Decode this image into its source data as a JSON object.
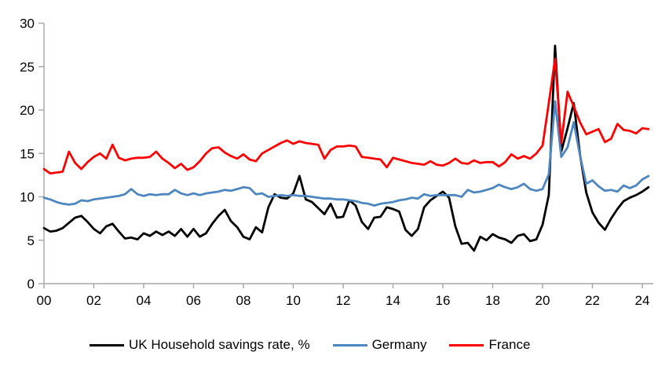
{
  "page": {
    "background": "#ffffff"
  },
  "chart_data": {
    "type": "line",
    "title": "",
    "grid": false,
    "legend_position": "bottom",
    "axis_color": "#a6a6a6",
    "label_color": "#000000",
    "x_axis": {
      "tick_labels": [
        "00",
        "02",
        "04",
        "06",
        "08",
        "10",
        "12",
        "14",
        "16",
        "18",
        "20",
        "22",
        "24"
      ],
      "range_years": [
        2000,
        2024.25
      ],
      "frequency": "quarterly"
    },
    "y_axis": {
      "ticks": [
        0,
        5,
        10,
        15,
        20,
        25,
        30
      ],
      "range": [
        0,
        30
      ]
    },
    "x_years": [
      2000.0,
      2000.25,
      2000.5,
      2000.75,
      2001.0,
      2001.25,
      2001.5,
      2001.75,
      2002.0,
      2002.25,
      2002.5,
      2002.75,
      2003.0,
      2003.25,
      2003.5,
      2003.75,
      2004.0,
      2004.25,
      2004.5,
      2004.75,
      2005.0,
      2005.25,
      2005.5,
      2005.75,
      2006.0,
      2006.25,
      2006.5,
      2006.75,
      2007.0,
      2007.25,
      2007.5,
      2007.75,
      2008.0,
      2008.25,
      2008.5,
      2008.75,
      2009.0,
      2009.25,
      2009.5,
      2009.75,
      2010.0,
      2010.25,
      2010.5,
      2010.75,
      2011.0,
      2011.25,
      2011.5,
      2011.75,
      2012.0,
      2012.25,
      2012.5,
      2012.75,
      2013.0,
      2013.25,
      2013.5,
      2013.75,
      2014.0,
      2014.25,
      2014.5,
      2014.75,
      2015.0,
      2015.25,
      2015.5,
      2015.75,
      2016.0,
      2016.25,
      2016.5,
      2016.75,
      2017.0,
      2017.25,
      2017.5,
      2017.75,
      2018.0,
      2018.25,
      2018.5,
      2018.75,
      2019.0,
      2019.25,
      2019.5,
      2019.75,
      2020.0,
      2020.25,
      2020.5,
      2020.75,
      2021.0,
      2021.25,
      2021.5,
      2021.75,
      2022.0,
      2022.25,
      2022.5,
      2022.75,
      2023.0,
      2023.25,
      2023.5,
      2023.75,
      2024.0,
      2024.25
    ],
    "series": [
      {
        "id": "uk",
        "name": "UK Household savings rate, %",
        "color": "#000000",
        "values": [
          6.4,
          6.0,
          6.1,
          6.4,
          7.0,
          7.6,
          7.8,
          7.1,
          6.3,
          5.8,
          6.6,
          6.9,
          6.0,
          5.2,
          5.3,
          5.1,
          5.8,
          5.5,
          6.0,
          5.6,
          6.0,
          5.5,
          6.3,
          5.4,
          6.3,
          5.4,
          5.8,
          6.9,
          7.8,
          8.5,
          7.2,
          6.5,
          5.4,
          5.1,
          6.5,
          5.9,
          8.8,
          10.3,
          9.9,
          9.8,
          10.4,
          12.4,
          9.7,
          9.4,
          8.7,
          8.0,
          9.2,
          7.6,
          7.7,
          9.6,
          9.0,
          7.1,
          6.3,
          7.6,
          7.7,
          8.8,
          8.6,
          8.3,
          6.2,
          5.5,
          6.3,
          8.8,
          9.6,
          10.1,
          10.6,
          9.9,
          6.6,
          4.6,
          4.7,
          3.8,
          5.4,
          5.0,
          5.7,
          5.3,
          5.1,
          4.7,
          5.5,
          5.7,
          4.9,
          5.1,
          6.8,
          10.2,
          27.4,
          15.2,
          17.9,
          20.8,
          14.9,
          10.5,
          8.2,
          7.0,
          6.2,
          7.5,
          8.6,
          9.5,
          9.9,
          10.2,
          10.6,
          11.1
        ]
      },
      {
        "id": "germany",
        "name": "Germany",
        "color": "#4e86c0",
        "values": [
          9.9,
          9.7,
          9.4,
          9.2,
          9.1,
          9.2,
          9.6,
          9.5,
          9.7,
          9.8,
          9.9,
          10.0,
          10.1,
          10.3,
          10.9,
          10.3,
          10.1,
          10.3,
          10.2,
          10.3,
          10.3,
          10.8,
          10.4,
          10.2,
          10.4,
          10.2,
          10.4,
          10.5,
          10.6,
          10.8,
          10.7,
          10.9,
          11.1,
          11.0,
          10.3,
          10.4,
          10.0,
          10.1,
          10.2,
          10.1,
          10.2,
          10.1,
          10.1,
          10.0,
          9.9,
          9.8,
          9.8,
          9.7,
          9.7,
          9.6,
          9.5,
          9.3,
          9.2,
          9.0,
          9.2,
          9.3,
          9.4,
          9.6,
          9.7,
          9.9,
          9.8,
          10.3,
          10.1,
          10.2,
          10.2,
          10.2,
          10.2,
          10.0,
          10.8,
          10.5,
          10.6,
          10.8,
          11.0,
          11.4,
          11.1,
          10.9,
          11.1,
          11.5,
          10.9,
          10.7,
          10.9,
          12.6,
          21.0,
          14.6,
          15.7,
          18.6,
          14.8,
          11.5,
          11.9,
          11.2,
          10.7,
          10.8,
          10.6,
          11.3,
          11.0,
          11.3,
          12.0,
          12.4
        ]
      },
      {
        "id": "france",
        "name": "France",
        "color": "#ff0000",
        "values": [
          13.2,
          12.7,
          12.8,
          12.9,
          15.2,
          13.9,
          13.2,
          14.0,
          14.6,
          15.0,
          14.4,
          16.0,
          14.5,
          14.2,
          14.4,
          14.5,
          14.5,
          14.6,
          15.2,
          14.4,
          13.9,
          13.3,
          13.8,
          13.1,
          13.4,
          14.1,
          15.0,
          15.6,
          15.7,
          15.1,
          14.7,
          14.4,
          14.9,
          14.3,
          14.1,
          15.0,
          15.4,
          15.8,
          16.2,
          16.5,
          16.1,
          16.4,
          16.2,
          16.1,
          16.0,
          14.4,
          15.4,
          15.8,
          15.8,
          15.9,
          15.8,
          14.6,
          14.5,
          14.4,
          14.3,
          13.4,
          14.5,
          14.3,
          14.1,
          13.9,
          13.8,
          13.7,
          14.1,
          13.7,
          13.6,
          13.9,
          14.4,
          13.9,
          13.8,
          14.2,
          13.9,
          14.0,
          14.0,
          13.5,
          14.0,
          14.9,
          14.4,
          14.7,
          14.4,
          15.0,
          15.9,
          20.8,
          25.9,
          16.2,
          22.1,
          20.4,
          18.6,
          17.2,
          17.5,
          17.8,
          16.3,
          16.7,
          18.4,
          17.7,
          17.6,
          17.3,
          17.9,
          17.8
        ]
      }
    ]
  },
  "legend": {
    "items": [
      {
        "label": "UK Household savings rate, %"
      },
      {
        "label": "Germany"
      },
      {
        "label": "France"
      }
    ]
  }
}
